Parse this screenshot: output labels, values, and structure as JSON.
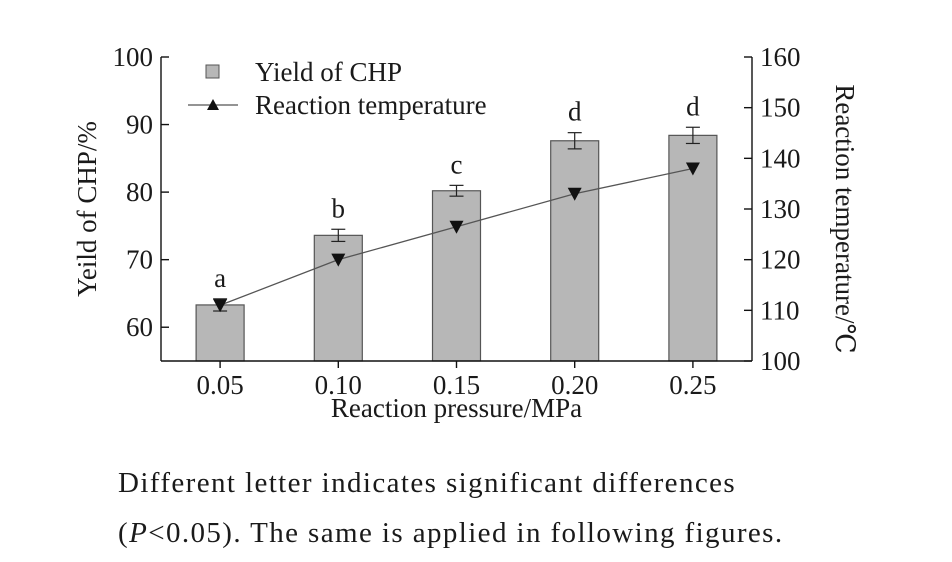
{
  "chart_data": {
    "type": "bar",
    "categories": [
      "0.05",
      "0.10",
      "0.15",
      "0.20",
      "0.25"
    ],
    "xlabel": "Reaction pressure/MPa",
    "ylabel_left": "Yeild of CHP/%",
    "ylabel_right": "Reaction temperature/℃",
    "ylim_left": [
      55,
      100
    ],
    "yticks_left": [
      60,
      70,
      80,
      90,
      100
    ],
    "ylim_right": [
      100,
      160
    ],
    "yticks_right": [
      100,
      110,
      120,
      130,
      140,
      150,
      160
    ],
    "legend_position": "top-left",
    "grid": false,
    "series": [
      {
        "name": "Yield of CHP",
        "kind": "bar",
        "axis": "left",
        "color": "#b7b7b7",
        "values": [
          63.3,
          73.6,
          80.2,
          87.6,
          88.4
        ],
        "errors": [
          0.9,
          0.9,
          0.8,
          1.2,
          1.2
        ],
        "letters": [
          "a",
          "b",
          "c",
          "d",
          "d"
        ]
      },
      {
        "name": "Reaction temperature",
        "kind": "line",
        "axis": "right",
        "color": "#111111",
        "values": [
          111,
          120,
          126.5,
          133,
          138
        ]
      }
    ]
  },
  "footnote": {
    "line1": "Different letter indicates significant differences",
    "line2_italic": "P",
    "line2_rest": "<0.05). The same is applied in following figures.",
    "line2_open": "("
  }
}
